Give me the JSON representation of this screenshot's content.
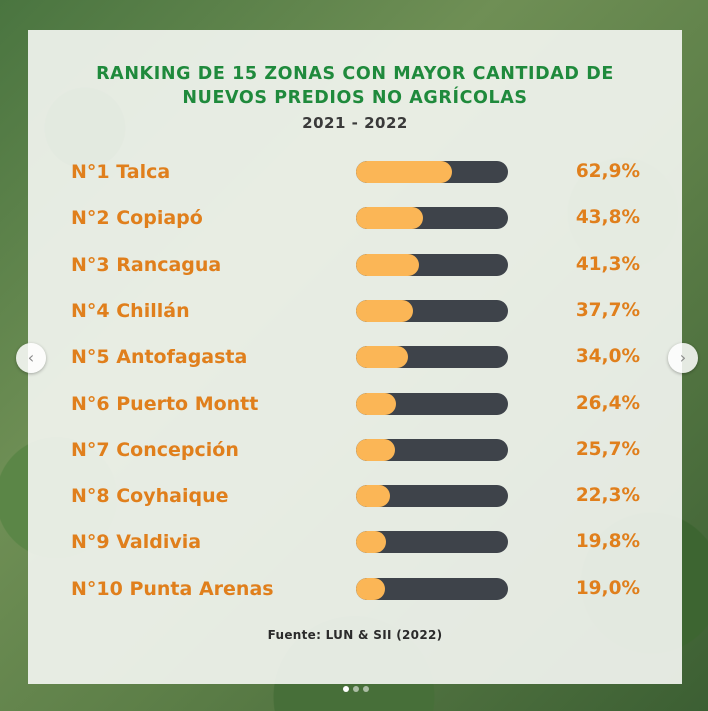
{
  "title": {
    "line1": "RANKING DE 15 ZONAS CON MAYOR CANTIDAD DE",
    "line2": "NUEVOS PREDIOS NO AGRÍCOLAS",
    "years": "2021 - 2022"
  },
  "source": "Fuente: LUN & SII (2022)",
  "nav": {
    "prev_icon": "‹",
    "next_icon": "›"
  },
  "colors": {
    "title": "#1f8a3c",
    "accent": "#e07f1c",
    "bar_fill": "#fbb656",
    "bar_track": "#3e434a"
  },
  "chart_data": {
    "type": "bar",
    "title": "RANKING DE 15 ZONAS CON MAYOR CANTIDAD DE NUEVOS PREDIOS NO AGRÍCOLAS",
    "subtitle": "2021 - 2022",
    "orientation": "horizontal",
    "ylim": [
      0,
      100
    ],
    "categories": [
      "N°1 Talca",
      "N°2 Copiapó",
      "N°3 Rancagua",
      "N°4 Chillán",
      "N°5 Antofagasta",
      "N°6 Puerto Montt",
      "N°7 Concepción",
      "N°8 Coyhaique",
      "N°9 Valdivia",
      "N°10 Punta Arenas"
    ],
    "values": [
      62.9,
      43.8,
      41.3,
      37.7,
      34.0,
      26.4,
      25.7,
      22.3,
      19.8,
      19.0
    ],
    "value_labels": [
      "62,9%",
      "43,8%",
      "41,3%",
      "37,7%",
      "34,0%",
      "26,4%",
      "25,7%",
      "22,3%",
      "19,8%",
      "19,0%"
    ]
  }
}
